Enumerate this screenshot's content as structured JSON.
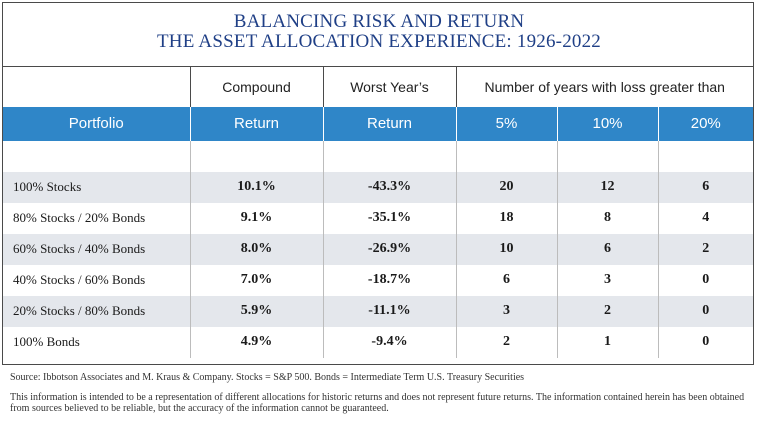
{
  "title": {
    "line1": "BALANCING RISK AND RETURN",
    "line2": "THE ASSET ALLOCATION EXPERIENCE: 1926-2022"
  },
  "table": {
    "top_headers": [
      "",
      "Compound",
      "Worst Year’s",
      "Number of years with loss greater than"
    ],
    "headers": [
      "Portfolio",
      "Return",
      "Return",
      "5%",
      "10%",
      "20%"
    ],
    "rows": [
      {
        "portfolio": "100% Stocks",
        "compound": "10.1%",
        "worst": "-43.3%",
        "loss5": "20",
        "loss10": "12",
        "loss20": "6"
      },
      {
        "portfolio": "80% Stocks / 20% Bonds",
        "compound": "9.1%",
        "worst": "-35.1%",
        "loss5": "18",
        "loss10": "8",
        "loss20": "4"
      },
      {
        "portfolio": "60% Stocks / 40% Bonds",
        "compound": "8.0%",
        "worst": "-26.9%",
        "loss5": "10",
        "loss10": "6",
        "loss20": "2"
      },
      {
        "portfolio": "40% Stocks / 60% Bonds",
        "compound": "7.0%",
        "worst": "-18.7%",
        "loss5": "6",
        "loss10": "3",
        "loss20": "0"
      },
      {
        "portfolio": "20% Stocks / 80% Bonds",
        "compound": "5.9%",
        "worst": "-11.1%",
        "loss5": "3",
        "loss10": "2",
        "loss20": "0"
      },
      {
        "portfolio": "100% Bonds",
        "compound": "4.9%",
        "worst": "-9.4%",
        "loss5": "2",
        "loss10": "1",
        "loss20": "0"
      }
    ]
  },
  "source": "Source: Ibbotson Associates and M. Kraus & Company. Stocks = S&P 500. Bonds = Intermediate Term U.S. Treasury Securities",
  "disclaimer": "This information is intended to be a representation of different allocations for historic returns and does not represent future returns. The information contained herein has been obtained from sources believed to be reliable, but the accuracy of the information cannot be guaranteed.",
  "colors": {
    "title": "#1f3f86",
    "header_bg": "#2f86c8",
    "row_shade": "#e4e7ec"
  }
}
